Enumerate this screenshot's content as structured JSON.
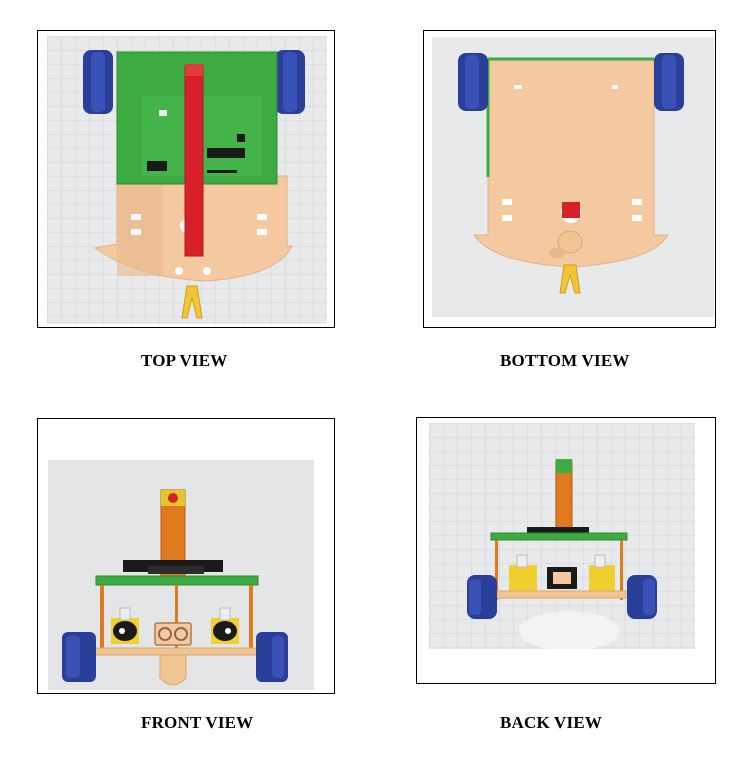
{
  "figure": {
    "panels": [
      {
        "id": "top",
        "caption": "TOP VIEW"
      },
      {
        "id": "bottom",
        "caption": "BOTTOM VIEW"
      },
      {
        "id": "front",
        "caption": "FRONT VIEW"
      },
      {
        "id": "back",
        "caption": "BACK VIEW"
      }
    ]
  },
  "colors": {
    "background": "#ffffff",
    "grid_bg": "#e8e9eb",
    "grid_line": "#c9cbd0",
    "chassis": "#f5c9a0",
    "pcb": "#3daa42",
    "wheel": "#2a3f9a",
    "mast_red": "#d8202a",
    "mast_orange": "#e07a1e",
    "motor": "#f0d030",
    "caster": "#f2c436"
  }
}
